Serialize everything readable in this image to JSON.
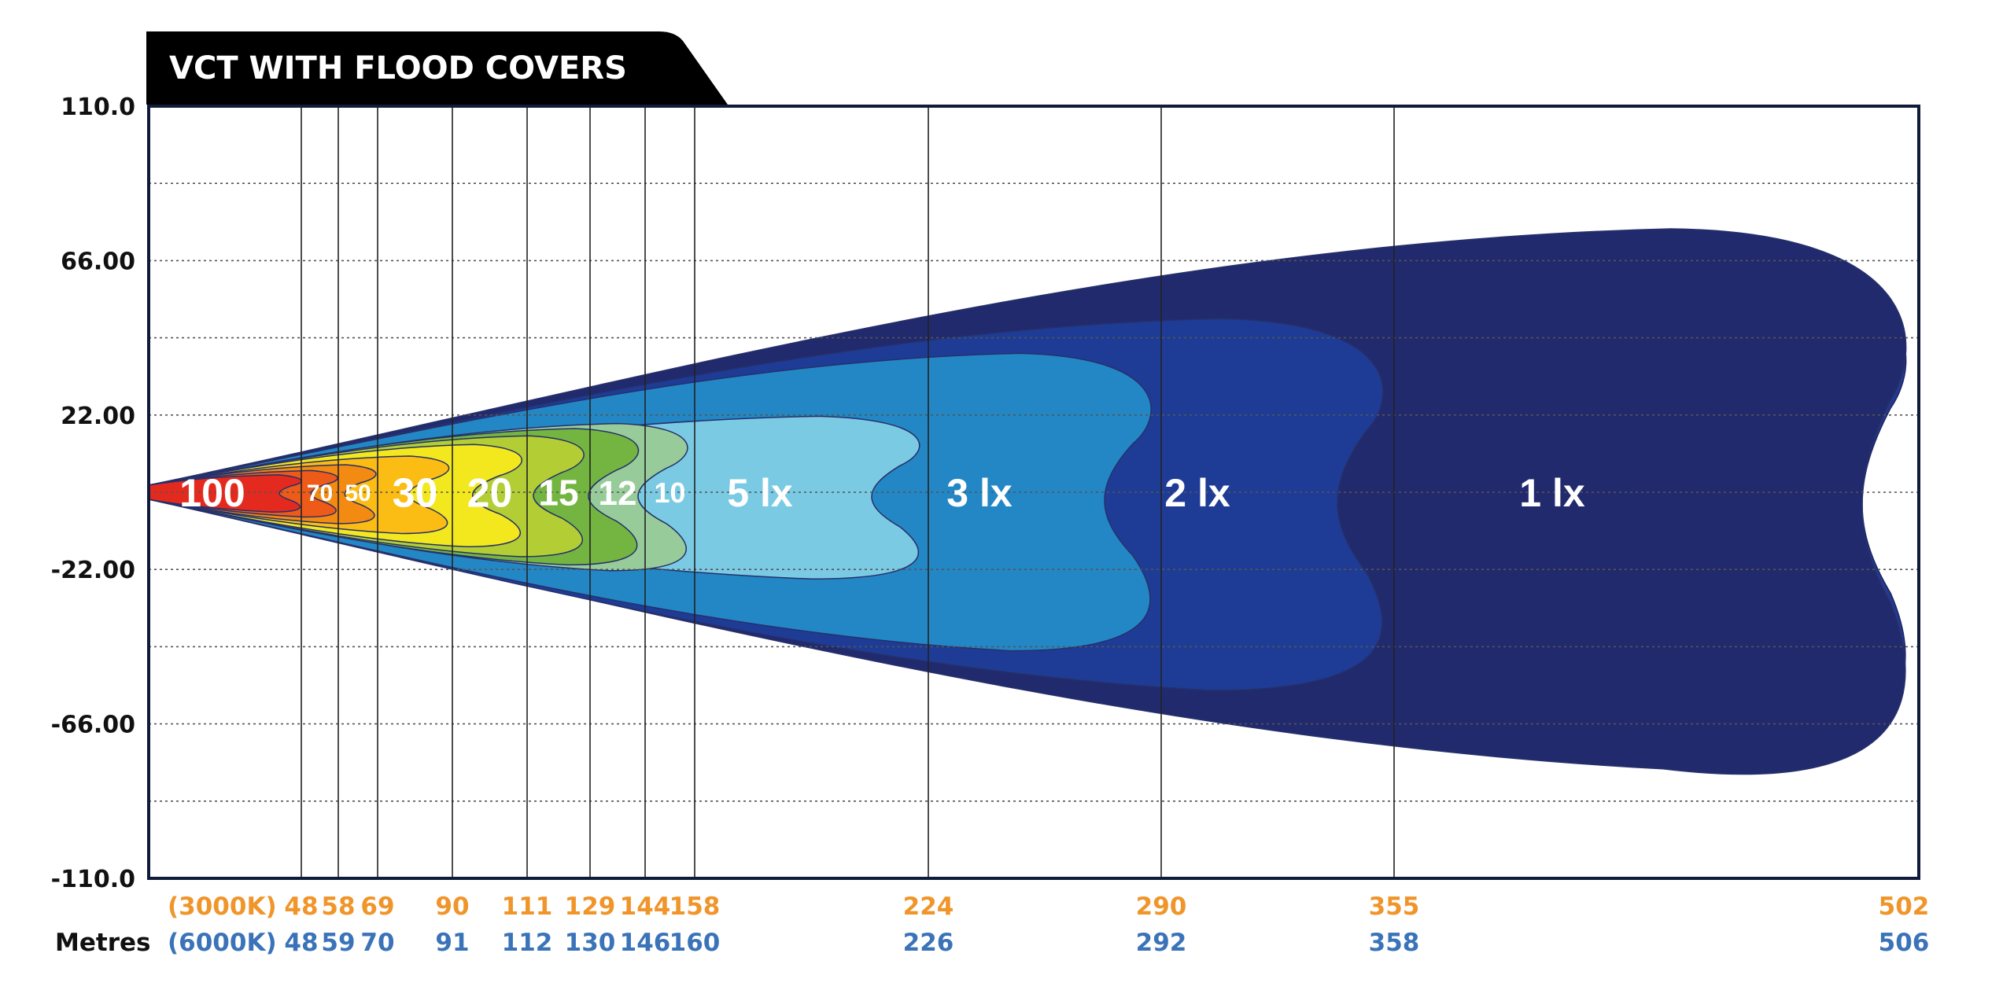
{
  "title": "VCT WITH FLOOD COVERS",
  "colors": {
    "tab": "#000000",
    "frame": "#101b3a",
    "temp_3000k": "#f0952a",
    "temp_6000k": "#3a73b8",
    "label_dark": "#111111"
  },
  "axis": {
    "x_label": "Metres",
    "x_row_3000_label": "(3000K)",
    "x_row_6000_label": "(6000K)",
    "y_ticks": [
      "110.0",
      "66.00",
      "22.00",
      "-22.00",
      "-66.00",
      "-110.0"
    ]
  },
  "chart_data": {
    "type": "area",
    "title": "VCT WITH FLOOD COVERS",
    "xlabel": "Metres",
    "ylim": [
      -110,
      110
    ],
    "grid": true,
    "y_ticks": [
      110,
      66,
      22,
      -22,
      -66,
      -110
    ],
    "lux_levels": [
      {
        "label": "100",
        "lux": 100,
        "color": "#e42a1f",
        "distance_3000k": 48,
        "distance_6000k": 48
      },
      {
        "label": "70",
        "lux": 70,
        "color": "#ee5a18",
        "distance_3000k": 58,
        "distance_6000k": 59
      },
      {
        "label": "50",
        "lux": 50,
        "color": "#f38a12",
        "distance_3000k": 69,
        "distance_6000k": 70
      },
      {
        "label": "30",
        "lux": 30,
        "color": "#fbbd14",
        "distance_3000k": 90,
        "distance_6000k": 91
      },
      {
        "label": "20",
        "lux": 20,
        "color": "#f3e81d",
        "distance_3000k": 111,
        "distance_6000k": 112
      },
      {
        "label": "15",
        "lux": 15,
        "color": "#b3cd34",
        "distance_3000k": 129,
        "distance_6000k": 130
      },
      {
        "label": "12",
        "lux": 12,
        "color": "#74b541",
        "distance_3000k": 144,
        "distance_6000k": 146
      },
      {
        "label": "10",
        "lux": 10,
        "color": "#97cc9a",
        "distance_3000k": 158,
        "distance_6000k": 160
      },
      {
        "label": "5 lx",
        "lux": 5,
        "color": "#7bcae3",
        "distance_3000k": 224,
        "distance_6000k": 226
      },
      {
        "label": "3 lx",
        "lux": 3,
        "color": "#2387c6",
        "distance_3000k": 290,
        "distance_6000k": 292
      },
      {
        "label": "2 lx",
        "lux": 2,
        "color": "#1e3c95",
        "distance_3000k": 355,
        "distance_6000k": 358
      },
      {
        "label": "1 lx",
        "lux": 1,
        "color": "#222a6e",
        "distance_3000k": 502,
        "distance_6000k": 506
      }
    ],
    "outer_halo_color": "#27398e"
  }
}
